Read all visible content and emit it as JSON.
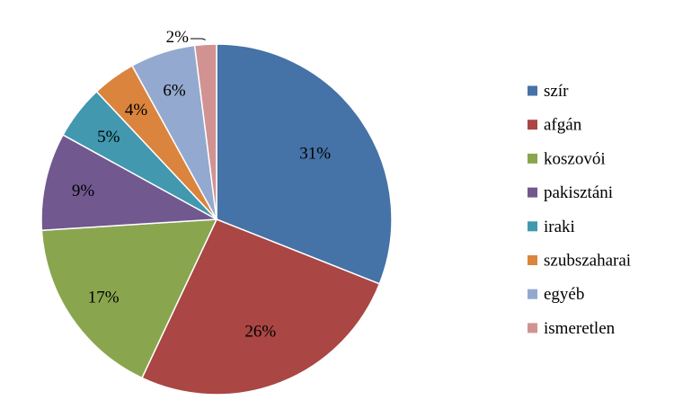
{
  "chart_data": {
    "type": "pie",
    "title": "",
    "legend_position": "right",
    "start_angle_deg": 0,
    "direction": "clockwise",
    "categories": [
      "szír",
      "afgán",
      "koszovói",
      "pakisztáni",
      "iraki",
      "szubszaharai",
      "egyéb",
      "ismeretlen"
    ],
    "values": [
      31,
      26,
      17,
      9,
      5,
      4,
      6,
      2
    ],
    "labels": [
      "31%",
      "26%",
      "17%",
      "9%",
      "5%",
      "4%",
      "6%",
      "2%"
    ],
    "colors": [
      "#4572A7",
      "#AA4643",
      "#89A54E",
      "#71588F",
      "#4198AF",
      "#DB843D",
      "#93A9CF",
      "#D19392"
    ]
  }
}
